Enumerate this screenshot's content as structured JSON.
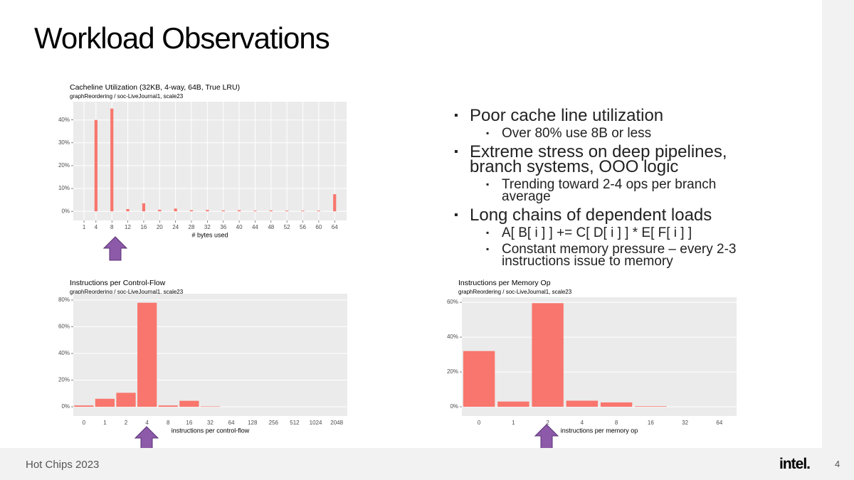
{
  "title": "Workload Observations",
  "bullets": [
    {
      "text": "Poor cache line utilization",
      "sub": [
        "Over 80% use 8B or less"
      ]
    },
    {
      "text": "Extreme stress on deep pipelines, branch systems, OOO logic",
      "sub": [
        "Trending toward 2-4 ops per branch average"
      ]
    },
    {
      "text": "Long chains of dependent loads",
      "sub": [
        "A[ B[ i ] ] += C[ D[ i ] ] * E[ F[ i ] ]",
        "Constant memory pressure – every 2-3 instructions issue to memory"
      ]
    }
  ],
  "footer": "Hot Chips 2023",
  "logo": "intel.",
  "page_number": "4",
  "chart_data": [
    {
      "type": "bar",
      "title": "Cacheline Utilization (32KB, 4-way, 64B, True LRU)",
      "subtitle": "graphReordering / soc-LiveJournal1, scale23",
      "x_label": "# bytes used",
      "x": [
        4,
        8,
        12,
        16,
        20,
        24,
        28,
        32,
        36,
        40,
        44,
        48,
        52,
        56,
        60,
        64
      ],
      "values": [
        40,
        45,
        1,
        3.5,
        0.7,
        1.2,
        0.5,
        0.6,
        0.4,
        0.5,
        0.3,
        0.4,
        0.3,
        0.3,
        0.3,
        7.5
      ],
      "color": "#f8766d",
      "grid": true,
      "xlim": [
        -1.7,
        67
      ],
      "xticks": [
        1,
        4,
        8,
        12,
        16,
        20,
        24,
        28,
        32,
        36,
        40,
        44,
        48,
        52,
        56,
        60,
        64
      ],
      "ylim": [
        -4,
        48
      ],
      "yticks": [
        {
          "value": 0,
          "label": "0%"
        },
        {
          "value": 10,
          "label": "10%"
        },
        {
          "value": 20,
          "label": "20%"
        },
        {
          "value": 30,
          "label": "30%"
        },
        {
          "value": 40,
          "label": "40%"
        }
      ]
    },
    {
      "type": "bar",
      "title": "Instructions per Control-Flow",
      "subtitle": "graphReordering / soc-LiveJournal1, scale23",
      "x_label": "instructions per control-flow",
      "categories": [
        "0",
        "1",
        "2",
        "4",
        "8",
        "16",
        "32",
        "64",
        "128",
        "256",
        "512",
        "1024",
        "2048"
      ],
      "values": [
        1,
        6,
        10.5,
        78,
        1,
        4.5,
        0.3,
        0,
        0,
        0,
        0,
        0,
        0
      ],
      "color": "#f8766d",
      "grid": true,
      "ylim": [
        -6.9,
        84.8
      ],
      "yticks": [
        {
          "value": 0,
          "label": "0%"
        },
        {
          "value": 20,
          "label": "20%"
        },
        {
          "value": 40,
          "label": "40%"
        },
        {
          "value": 60,
          "label": "60%"
        },
        {
          "value": 80,
          "label": "80%"
        }
      ]
    },
    {
      "type": "bar",
      "title": "Instructions per Memory Op",
      "subtitle": "graphReordering / soc-LiveJournal1, scale23",
      "x_label": "instructions per memory op",
      "categories": [
        "0",
        "1",
        "2",
        "4",
        "8",
        "16",
        "32",
        "64"
      ],
      "values": [
        32,
        3,
        59.5,
        3.5,
        2.5,
        0.3,
        0,
        0
      ],
      "color": "#f8766d",
      "grid": true,
      "ylim": [
        -5.3,
        62.9
      ],
      "yticks": [
        {
          "value": 0,
          "label": "0%"
        },
        {
          "value": 20,
          "label": "20%"
        },
        {
          "value": 40,
          "label": "40%"
        },
        {
          "value": 60,
          "label": "60%"
        }
      ]
    }
  ]
}
